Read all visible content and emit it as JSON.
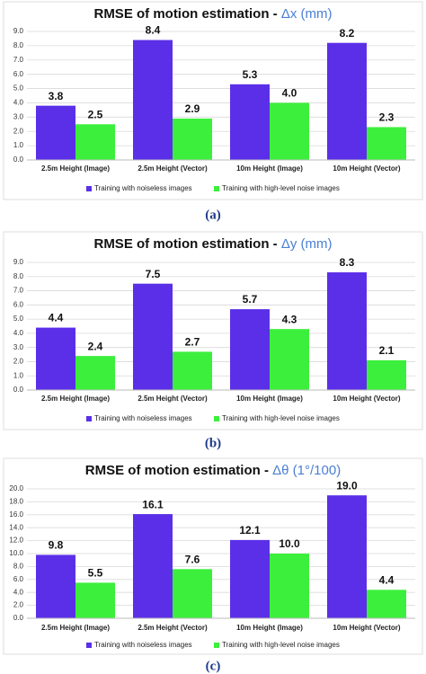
{
  "chart_data": [
    {
      "type": "bar",
      "title_parts": [
        "RMSE of motion estimation - ",
        "Δx (mm)"
      ],
      "caption": "(a)",
      "categories": [
        "2.5m Height (Image)",
        "2.5m Height (Vector)",
        "10m Height (Image)",
        "10m Height (Vector)"
      ],
      "series": [
        {
          "name": "Training with noiseless images",
          "color": "#5b2fe8",
          "values": [
            3.8,
            8.4,
            5.3,
            8.2
          ],
          "value_labels": [
            "3.8",
            "8.4",
            "5.3",
            "8.2"
          ]
        },
        {
          "name": "Training with high-level noise images",
          "color": "#3cef3c",
          "values": [
            2.5,
            2.9,
            4.0,
            2.3
          ],
          "value_labels": [
            "2.5",
            "2.9",
            "4.0",
            "2.3"
          ]
        }
      ],
      "ylim": [
        0,
        9
      ],
      "yticks": [
        {
          "value": 0,
          "label": "0.0"
        },
        {
          "value": 1,
          "label": "1.0"
        },
        {
          "value": 2,
          "label": "2.0"
        },
        {
          "value": 3,
          "label": "3.0"
        },
        {
          "value": 4,
          "label": "4.0"
        },
        {
          "value": 5,
          "label": "5.0"
        },
        {
          "value": 6,
          "label": "6.0"
        },
        {
          "value": 7,
          "label": "7.0"
        },
        {
          "value": 8,
          "label": "8.0"
        },
        {
          "value": 9,
          "label": "9.0"
        }
      ],
      "grid": true
    },
    {
      "type": "bar",
      "title_parts": [
        "RMSE of motion estimation - ",
        "Δy (mm)"
      ],
      "caption": "(b)",
      "categories": [
        "2.5m Height (Image)",
        "2.5m Height (Vector)",
        "10m Height (Image)",
        "10m Height (Vector)"
      ],
      "series": [
        {
          "name": "Training with noiseless images",
          "color": "#5b2fe8",
          "values": [
            4.4,
            7.5,
            5.7,
            8.3
          ],
          "value_labels": [
            "4.4",
            "7.5",
            "5.7",
            "8.3"
          ]
        },
        {
          "name": "Training with high-level noise images",
          "color": "#3cef3c",
          "values": [
            2.4,
            2.7,
            4.3,
            2.1
          ],
          "value_labels": [
            "2.4",
            "2.7",
            "4.3",
            "2.1"
          ]
        }
      ],
      "ylim": [
        0,
        9
      ],
      "yticks": [
        {
          "value": 0,
          "label": "0.0"
        },
        {
          "value": 1,
          "label": "1.0"
        },
        {
          "value": 2,
          "label": "2.0"
        },
        {
          "value": 3,
          "label": "3.0"
        },
        {
          "value": 4,
          "label": "4.0"
        },
        {
          "value": 5,
          "label": "5.0"
        },
        {
          "value": 6,
          "label": "6.0"
        },
        {
          "value": 7,
          "label": "7.0"
        },
        {
          "value": 8,
          "label": "8.0"
        },
        {
          "value": 9,
          "label": "9.0"
        }
      ],
      "grid": true
    },
    {
      "type": "bar",
      "title_parts": [
        "RMSE of motion estimation - ",
        "Δθ (1°/100)"
      ],
      "caption": "(c)",
      "categories": [
        "2.5m Height (Image)",
        "2.5m Height (Vector)",
        "10m Height (Image)",
        "10m Height (Vector)"
      ],
      "series": [
        {
          "name": "Training with noiseless images",
          "color": "#5b2fe8",
          "values": [
            9.8,
            16.1,
            12.1,
            19.0
          ],
          "value_labels": [
            "9.8",
            "16.1",
            "12.1",
            "19.0"
          ]
        },
        {
          "name": "Training with high-level noise images",
          "color": "#3cef3c",
          "values": [
            5.5,
            7.6,
            10.0,
            4.4
          ],
          "value_labels": [
            "5.5",
            "7.6",
            "10.0",
            "4.4"
          ]
        }
      ],
      "ylim": [
        0,
        20
      ],
      "yticks": [
        {
          "value": 0,
          "label": "0.0"
        },
        {
          "value": 2,
          "label": "2.0"
        },
        {
          "value": 4,
          "label": "4.0"
        },
        {
          "value": 6,
          "label": "6.0"
        },
        {
          "value": 8,
          "label": "8.0"
        },
        {
          "value": 10,
          "label": "10.0"
        },
        {
          "value": 12,
          "label": "12.0"
        },
        {
          "value": 14,
          "label": "14.0"
        },
        {
          "value": 16,
          "label": "16.0"
        },
        {
          "value": 18,
          "label": "18.0"
        },
        {
          "value": 20,
          "label": "20.0"
        }
      ],
      "grid": true
    }
  ]
}
